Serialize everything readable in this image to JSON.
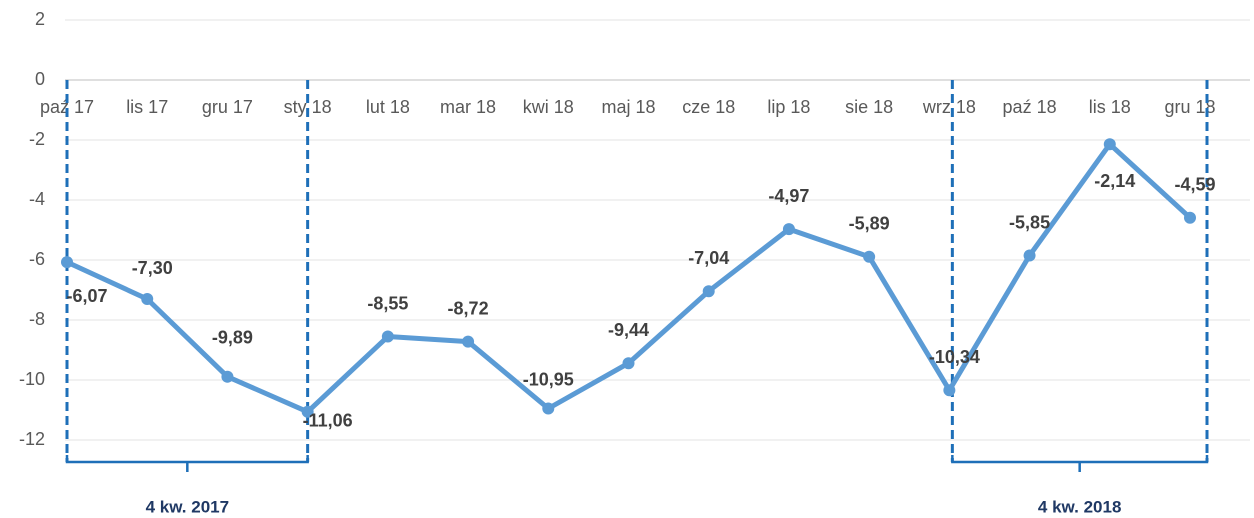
{
  "chart_data": {
    "type": "line",
    "categories": [
      "paź 17",
      "lis 17",
      "gru 17",
      "sty 18",
      "lut 18",
      "mar 18",
      "kwi 18",
      "maj 18",
      "cze 18",
      "lip 18",
      "sie 18",
      "wrz 18",
      "paź 18",
      "lis 18",
      "gru 18"
    ],
    "series": [
      {
        "name": "",
        "color": "#5b9bd5",
        "values": [
          -6.07,
          -7.3,
          -9.89,
          -11.06,
          -8.55,
          -8.72,
          -10.95,
          -9.44,
          -7.04,
          -4.97,
          -5.89,
          -10.34,
          -5.85,
          -2.14,
          -4.59
        ],
        "value_labels": [
          "-6,07",
          "-7,30",
          "-9,89",
          "-11,06",
          "-8,55",
          "-8,72",
          "-10,95",
          "-9,44",
          "-7,04",
          "-4,97",
          "-5,89",
          "-10,34",
          "-5,85",
          "-2,14",
          "-4,59"
        ]
      }
    ],
    "ylim": [
      -12,
      2
    ],
    "yticks": [
      2,
      0,
      -2,
      -4,
      -6,
      -8,
      -10,
      -12
    ],
    "grid": true,
    "annotations": [
      {
        "label": "4 kw. 2017",
        "from": "paź 17",
        "to": "sty 18"
      },
      {
        "label": "4 kw. 2018",
        "from": "wrz 18",
        "to": "gru 18"
      }
    ]
  }
}
